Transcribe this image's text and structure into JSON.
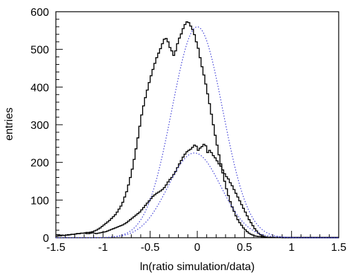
{
  "chart_data": {
    "type": "line",
    "xlabel": "ln(ratio simulation/data)",
    "ylabel": "entries",
    "xlim": [
      -1.5,
      1.5
    ],
    "ylim": [
      0,
      600
    ],
    "x_ticks": [
      -1.5,
      -1,
      -0.5,
      0,
      0.5,
      1,
      1.5
    ],
    "x_tick_labels": [
      "-1.5",
      "-1",
      "-0.5",
      "0",
      "0.5",
      "1",
      "1.5"
    ],
    "y_ticks": [
      0,
      100,
      200,
      300,
      400,
      500,
      600
    ],
    "y_tick_labels": [
      "0",
      "100",
      "200",
      "300",
      "400",
      "500",
      "600"
    ],
    "grid": false,
    "series": [
      {
        "style": "histogram",
        "color": "#000000",
        "bin_width": 0.02,
        "x_start": -1.5,
        "values": [
          8,
          8,
          7,
          7,
          6,
          7,
          7,
          8,
          9,
          9,
          10,
          11,
          11,
          12,
          12,
          13,
          14,
          14,
          15,
          16,
          18,
          20,
          23,
          26,
          30,
          34,
          38,
          42,
          46,
          51,
          56,
          61,
          68,
          76,
          84,
          94,
          108,
          122,
          140,
          160,
          182,
          208,
          236,
          265,
          296,
          326,
          350,
          372,
          392,
          412,
          430,
          447,
          463,
          478,
          490,
          502,
          515,
          527,
          529,
          520,
          505,
          496,
          484,
          496,
          515,
          530,
          541,
          555,
          566,
          573,
          571,
          562,
          553,
          539,
          520,
          503,
          478,
          454,
          432,
          408,
          382,
          356,
          328,
          300,
          272,
          246,
          220,
          196,
          172,
          150,
          130,
          112,
          96,
          82,
          70,
          58,
          48,
          40,
          33,
          26,
          21,
          16,
          12,
          9,
          7,
          5,
          4,
          3,
          3,
          2,
          2,
          1,
          1,
          1,
          1,
          1,
          1,
          1,
          1,
          1,
          0,
          0,
          0,
          0,
          0,
          0,
          0,
          0,
          0,
          0,
          0,
          0,
          0,
          0,
          0,
          0,
          0,
          0,
          0,
          0,
          0,
          0,
          0,
          0,
          0,
          0,
          0,
          0,
          0,
          0
        ]
      },
      {
        "style": "histogram",
        "color": "#000000",
        "bin_width": 0.02,
        "x_start": -1.5,
        "values": [
          4,
          5,
          5,
          6,
          6,
          7,
          8,
          8,
          9,
          9,
          10,
          11,
          11,
          12,
          12,
          12,
          11,
          11,
          12,
          13,
          12,
          11,
          12,
          13,
          14,
          15,
          16,
          18,
          20,
          22,
          24,
          26,
          28,
          30,
          32,
          34,
          37,
          40,
          44,
          48,
          52,
          56,
          60,
          64,
          68,
          74,
          80,
          86,
          92,
          98,
          104,
          110,
          114,
          118,
          121,
          124,
          128,
          133,
          140,
          148,
          155,
          160,
          168,
          176,
          186,
          196,
          205,
          214,
          222,
          228,
          232,
          235,
          240,
          246,
          243,
          232,
          238,
          242,
          248,
          244,
          226,
          232,
          226,
          218,
          212,
          204,
          196,
          190,
          180,
          170,
          162,
          156,
          146,
          138,
          128,
          118,
          108,
          98,
          88,
          78,
          68,
          58,
          48,
          40,
          32,
          24,
          18,
          12,
          8,
          5,
          3,
          2,
          1,
          1,
          1,
          1,
          1,
          1,
          1,
          1,
          1,
          1,
          1,
          1,
          1,
          1,
          1,
          1,
          1,
          1,
          1,
          1,
          1,
          1,
          1,
          1,
          1,
          1,
          1,
          1,
          1,
          1,
          1,
          1,
          1,
          1,
          1,
          1,
          1,
          1
        ]
      },
      {
        "style": "dotted",
        "color": "#3a3ad6",
        "fit": "gauss",
        "amplitude": 560,
        "mean": 0,
        "sigma": 0.27
      },
      {
        "style": "dotted",
        "color": "#3a3ad6",
        "fit": "gauss",
        "amplitude": 225,
        "mean": -0.03,
        "sigma": 0.28
      }
    ]
  }
}
